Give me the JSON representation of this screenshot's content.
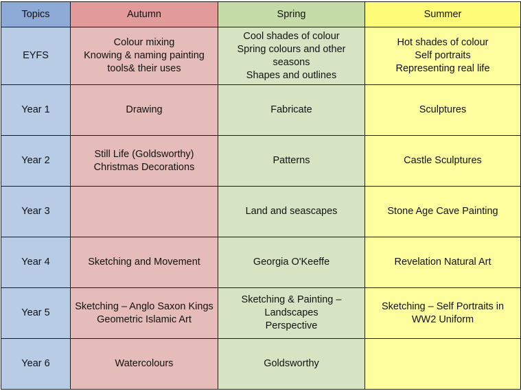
{
  "header": {
    "topics": "Topics",
    "autumn": "Autumn",
    "spring": "Spring",
    "summer": "Summer"
  },
  "rows": [
    {
      "label": "EYFS",
      "autumn": [
        "Colour mixing",
        "Knowing & naming painting",
        "tools& their uses"
      ],
      "spring": [
        "Cool shades of colour",
        "Spring colours and other",
        "seasons",
        "Shapes and outlines"
      ],
      "summer": [
        "Hot shades of colour",
        "Self portraits",
        "Representing real life"
      ]
    },
    {
      "label": "Year 1",
      "autumn": [
        "Drawing"
      ],
      "spring": [
        "Fabricate"
      ],
      "summer": [
        "Sculptures"
      ]
    },
    {
      "label": "Year 2",
      "autumn": [
        "Still Life (Goldsworthy)",
        "Christmas Decorations"
      ],
      "spring": [
        "Patterns"
      ],
      "summer": [
        "Castle Sculptures"
      ]
    },
    {
      "label": "Year 3",
      "autumn": [],
      "spring": [
        "Land and seascapes"
      ],
      "summer": [
        "Stone Age Cave Painting"
      ]
    },
    {
      "label": "Year 4",
      "autumn": [
        "Sketching and Movement"
      ],
      "spring": [
        "Georgia O'Keeffe"
      ],
      "summer": [
        "Revelation Natural Art"
      ]
    },
    {
      "label": "Year 5",
      "autumn": [
        "Sketching – Anglo Saxon Kings",
        "Geometric Islamic Art"
      ],
      "spring": [
        "Sketching & Painting –",
        "Landscapes",
        "Perspective"
      ],
      "summer": [
        "Sketching – Self Portraits in",
        "WW2 Uniform"
      ]
    },
    {
      "label": "Year 6",
      "autumn": [
        "Watercolours"
      ],
      "spring": [
        "Goldsworthy"
      ],
      "summer": []
    }
  ],
  "colors": {
    "topics_header": "#8eaad6",
    "autumn_header": "#e29a9a",
    "spring_header": "#c6dca8",
    "summer_header": "#fdfb78",
    "year_label": "#b8cce6",
    "autumn_cell": "#e6bcbb",
    "spring_cell": "#d7e4c4",
    "summer_cell": "#fefe9e"
  }
}
